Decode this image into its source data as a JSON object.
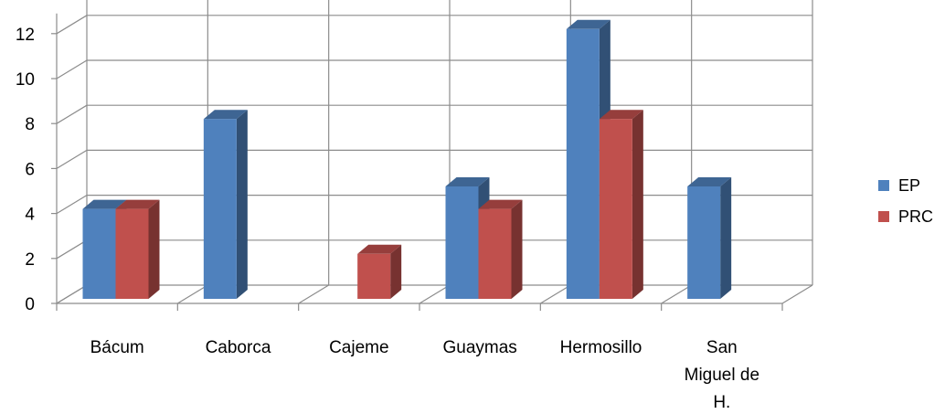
{
  "chart_data": {
    "type": "bar",
    "categories": [
      "Bácum",
      "Caborca",
      "Cajeme",
      "Guaymas",
      "Hermosillo",
      "San Miguel de H."
    ],
    "category_lines": [
      [
        "Bácum"
      ],
      [
        "Caborca"
      ],
      [
        "Cajeme"
      ],
      [
        "Guaymas"
      ],
      [
        "Hermosillo"
      ],
      [
        "San",
        "Miguel de",
        "H."
      ]
    ],
    "series": [
      {
        "name": "EP",
        "values": [
          4,
          8,
          0,
          5,
          12,
          5
        ],
        "color": "#4F81BD"
      },
      {
        "name": "PRC",
        "values": [
          4,
          0,
          2,
          4,
          8,
          0
        ],
        "color": "#C0504D"
      }
    ],
    "yticks": [
      "0",
      "2",
      "4",
      "6",
      "8",
      "10",
      "12"
    ],
    "ylim": [
      0,
      12
    ],
    "grid": true,
    "legend_position": "right",
    "style": "3d-clustered-column"
  }
}
